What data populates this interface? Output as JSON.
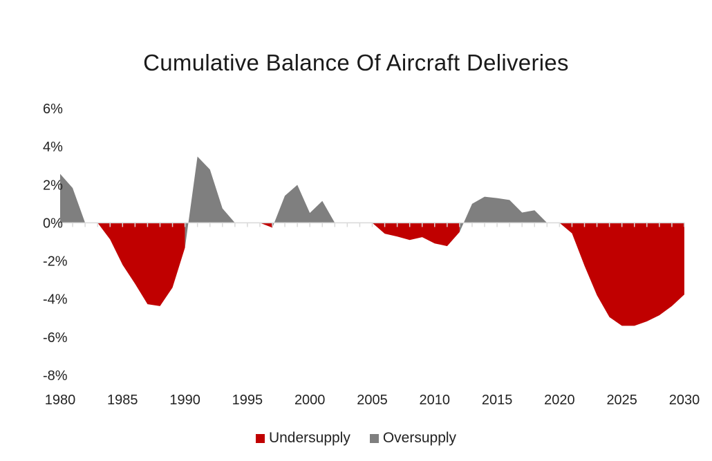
{
  "chart_data": {
    "type": "area",
    "title": "Cumulative Balance Of Aircraft Deliveries",
    "xlabel": "",
    "ylabel": "",
    "xlim": [
      1980,
      2030
    ],
    "ylim": [
      -8,
      6
    ],
    "x_ticks": [
      "1980",
      "1985",
      "1990",
      "1995",
      "2000",
      "2005",
      "2010",
      "2015",
      "2020",
      "2025",
      "2030"
    ],
    "y_ticks": [
      "6%",
      "4%",
      "2%",
      "0%",
      "-2%",
      "-4%",
      "-6%",
      "-8%"
    ],
    "y_tick_values": [
      6,
      4,
      2,
      0,
      -2,
      -4,
      -6,
      -8
    ],
    "grid": false,
    "legend_position": "bottom",
    "x": [
      1980,
      1981,
      1982,
      1983,
      1984,
      1985,
      1986,
      1987,
      1988,
      1989,
      1990,
      1991,
      1992,
      1993,
      1994,
      1995,
      1996,
      1997,
      1998,
      1999,
      2000,
      2001,
      2002,
      2003,
      2004,
      2005,
      2006,
      2007,
      2008,
      2009,
      2010,
      2011,
      2012,
      2013,
      2014,
      2015,
      2016,
      2017,
      2018,
      2019,
      2020,
      2021,
      2022,
      2023,
      2024,
      2025,
      2026,
      2027,
      2028,
      2029,
      2030
    ],
    "series": [
      {
        "name": "Undersupply",
        "color": "#c00000",
        "values": [
          0,
          0,
          0,
          0,
          -0.87,
          -2.2,
          -3.2,
          -4.27,
          -4.37,
          -3.4,
          -1.3,
          null,
          0,
          0,
          0,
          0,
          0,
          -0.25,
          null,
          0,
          0,
          0,
          0,
          0,
          0,
          0,
          -0.57,
          -0.72,
          -0.9,
          -0.75,
          -1.08,
          -1.22,
          -0.48,
          null,
          0,
          0,
          0,
          0,
          0,
          0,
          0,
          -0.55,
          -2.25,
          -3.8,
          -4.95,
          -5.4,
          -5.4,
          -5.17,
          -4.85,
          -4.37,
          -3.76
        ]
      },
      {
        "name": "Oversupply",
        "color": "#7f7f7f",
        "values": [
          2.57,
          1.83,
          0,
          0,
          0,
          0,
          0,
          0,
          0,
          null,
          -1.3,
          3.48,
          2.8,
          0.76,
          0,
          0,
          null,
          -0.25,
          1.42,
          1.99,
          0.52,
          1.15,
          0,
          0,
          0,
          0,
          0,
          0,
          0,
          0,
          0,
          null,
          -0.48,
          1.0,
          1.37,
          1.3,
          1.2,
          0.54,
          0.66,
          0,
          0,
          0,
          0,
          0,
          0,
          0,
          0,
          0,
          0,
          0,
          0
        ]
      }
    ]
  }
}
